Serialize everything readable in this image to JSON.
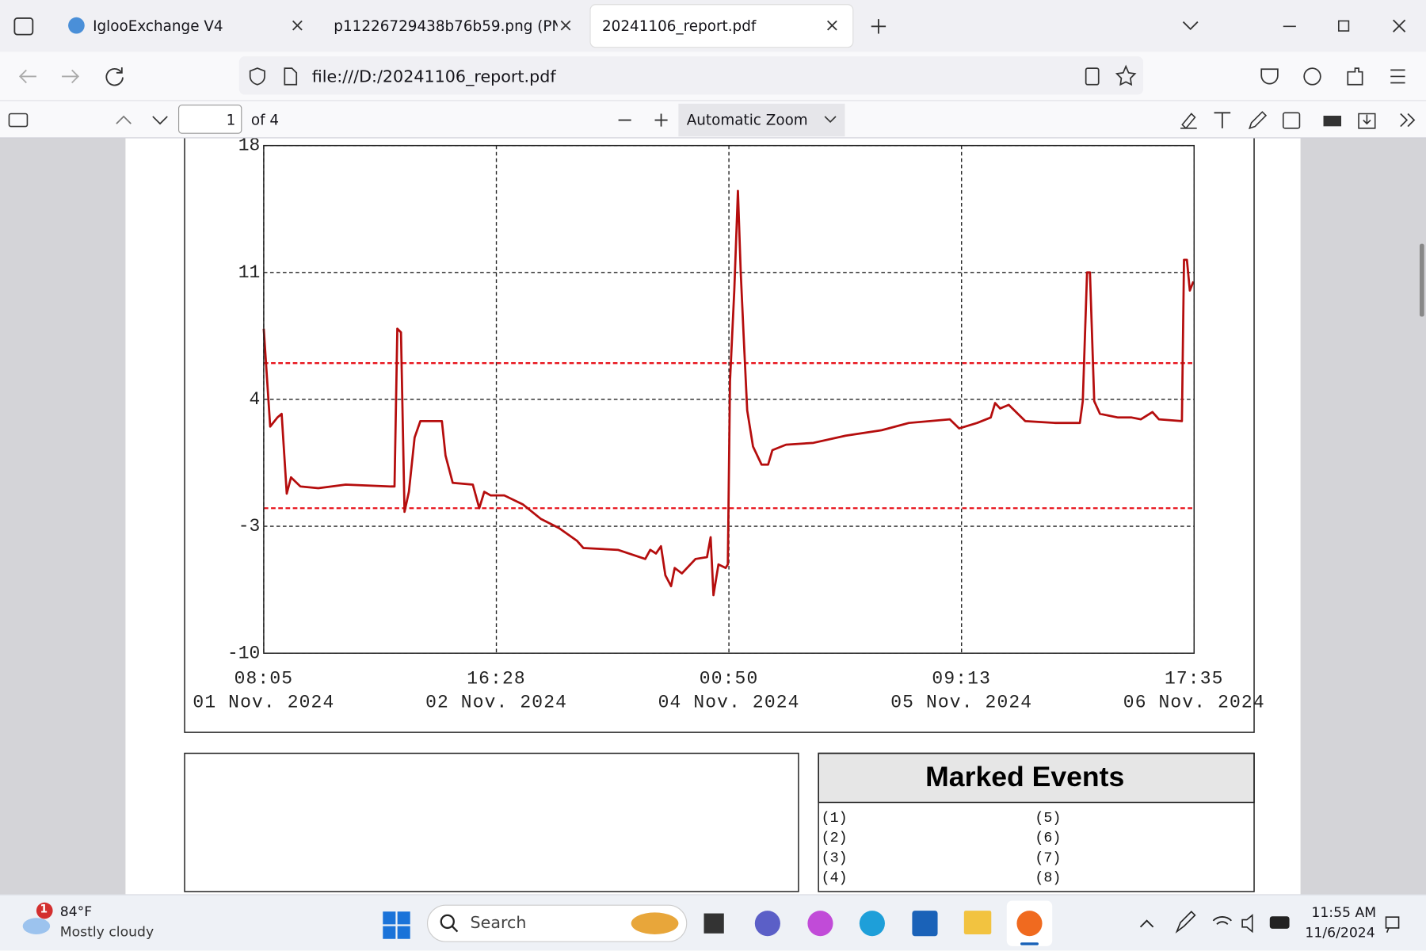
{
  "tabs": [
    {
      "title": "IglooExchange V4"
    },
    {
      "title": "p11226729438b76b59.png (PNG Im"
    },
    {
      "title": "20241106_report.pdf"
    }
  ],
  "address_bar": {
    "url": "file:///D:/20241106_report.pdf"
  },
  "pdf_toolbar": {
    "page": "1",
    "page_count": "of 4",
    "zoom": "Automatic Zoom"
  },
  "chart_data": {
    "type": "line",
    "xlim": [
      0,
      129.5
    ],
    "xticks": [
      {
        "value": 0,
        "label": [
          "08:05",
          "01 Nov. 2024"
        ]
      },
      {
        "value": 32.38,
        "label": [
          "16:28",
          "02 Nov. 2024"
        ]
      },
      {
        "value": 64.75,
        "label": [
          "00:50",
          "04 Nov. 2024"
        ]
      },
      {
        "value": 97.13,
        "label": [
          "09:13",
          "05 Nov. 2024"
        ]
      },
      {
        "value": 129.5,
        "label": [
          "17:35",
          "06 Nov. 2024"
        ]
      }
    ],
    "ylim": [
      -10,
      18
    ],
    "yticks": [
      -10,
      -3,
      4,
      11,
      18
    ],
    "grid": true,
    "ref_lines": [
      {
        "value": 6,
        "color": "#e8141c"
      },
      {
        "value": -2,
        "color": "#e8141c"
      }
    ],
    "x": [
      0,
      0.9,
      1.9,
      2.5,
      3.2,
      3.8,
      5.1,
      7.6,
      11.4,
      17.7,
      18.2,
      18.6,
      19.1,
      19.6,
      20.2,
      21.0,
      21.8,
      24.8,
      25.3,
      26.3,
      29.1,
      30.0,
      30.7,
      31.6,
      33.5,
      36.1,
      38.6,
      41.1,
      43.6,
      44.5,
      49.3,
      53.1,
      53.8,
      54.6,
      55.3,
      55.9,
      56.7,
      57.2,
      58.2,
      60.1,
      61.7,
      62.2,
      62.6,
      63.3,
      64.3,
      64.6,
      64.9,
      65.5,
      66.0,
      66.4,
      66.8,
      67.3,
      68.1,
      69.3,
      70.2,
      70.8,
      72.7,
      76.5,
      81.0,
      86.0,
      89.8,
      95.5,
      96.8,
      99.3,
      101.2,
      101.8,
      102.5,
      103.7,
      106.0,
      110.1,
      113.6,
      114.0,
      114.6,
      115.0,
      115.6,
      116.4,
      118.9,
      120.8,
      122.1,
      123.7,
      124.6,
      127.8,
      128.1,
      128.5,
      128.9,
      129.4
    ],
    "series": [
      {
        "color": "#b50d0d",
        "values": [
          7.9,
          2.5,
          3.0,
          3.2,
          -1.2,
          -0.3,
          -0.8,
          -0.9,
          -0.7,
          -0.8,
          -0.8,
          7.9,
          7.7,
          -2.2,
          -1.1,
          1.9,
          2.8,
          2.8,
          0.9,
          -0.6,
          -0.7,
          -2.0,
          -1.1,
          -1.3,
          -1.3,
          -1.8,
          -2.6,
          -3.1,
          -3.8,
          -4.2,
          -4.3,
          -4.8,
          -4.3,
          -4.5,
          -4.1,
          -5.7,
          -6.3,
          -5.3,
          -5.6,
          -4.8,
          -4.7,
          -3.6,
          -6.8,
          -5.1,
          -5.3,
          -5.1,
          5.0,
          10.0,
          15.5,
          11.0,
          7.5,
          3.4,
          1.4,
          0.4,
          0.4,
          1.2,
          1.5,
          1.6,
          2.0,
          2.3,
          2.7,
          2.9,
          2.4,
          2.7,
          3.0,
          3.8,
          3.5,
          3.7,
          2.8,
          2.7,
          2.7,
          3.9,
          11.0,
          11.0,
          3.9,
          3.2,
          3.0,
          3.0,
          2.9,
          3.3,
          2.9,
          2.8,
          11.7,
          11.7,
          10.0,
          10.5
        ]
      }
    ]
  },
  "marked_events": {
    "title": "Marked Events",
    "items": [
      "(1)",
      "(2)",
      "(3)",
      "(4)",
      "(5)",
      "(6)",
      "(7)",
      "(8)"
    ]
  },
  "taskbar": {
    "badge": "1",
    "temperature": "84°F",
    "weather": "Mostly cloudy",
    "search": "Search",
    "time": "11:55 AM",
    "date": "11/6/2024"
  }
}
